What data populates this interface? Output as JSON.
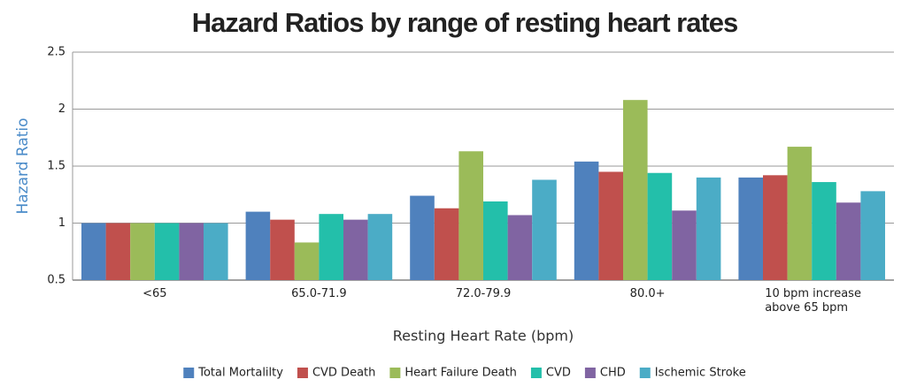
{
  "chart_data": {
    "type": "bar",
    "title": "Hazard Ratios by range of resting heart rates",
    "x_label": "Resting Heart Rate (bpm)",
    "y_label": "Hazard Ratio",
    "categories": [
      "<65",
      "65.0-71.9",
      "72.0-79.9",
      "80.0+",
      "10 bpm increase above 65 bpm"
    ],
    "series": [
      {
        "name": "Total Mortalilty",
        "color": "#4f81bd",
        "values": [
          1,
          1.1,
          1.24,
          1.54,
          1.4
        ]
      },
      {
        "name": "CVD Death",
        "color": "#c0504d",
        "values": [
          1,
          1.03,
          1.13,
          1.45,
          1.42
        ]
      },
      {
        "name": "Heart Failure Death",
        "color": "#9bbb59",
        "values": [
          1,
          0.83,
          1.63,
          2.08,
          1.67
        ]
      },
      {
        "name": "CVD",
        "color": "#23bfaa",
        "values": [
          1,
          1.08,
          1.19,
          1.44,
          1.36
        ]
      },
      {
        "name": "CHD",
        "color": "#8064a2",
        "values": [
          1,
          1.03,
          1.07,
          1.11,
          1.18
        ]
      },
      {
        "name": "Ischemic Stroke",
        "color": "#4bacc6",
        "values": [
          1,
          1.08,
          1.38,
          1.4,
          1.28
        ]
      }
    ],
    "ylim": [
      0.5,
      2.5
    ],
    "yticks": [
      0.5,
      1,
      1.5,
      2,
      2.5
    ],
    "grid": true,
    "legend": "bottom"
  }
}
